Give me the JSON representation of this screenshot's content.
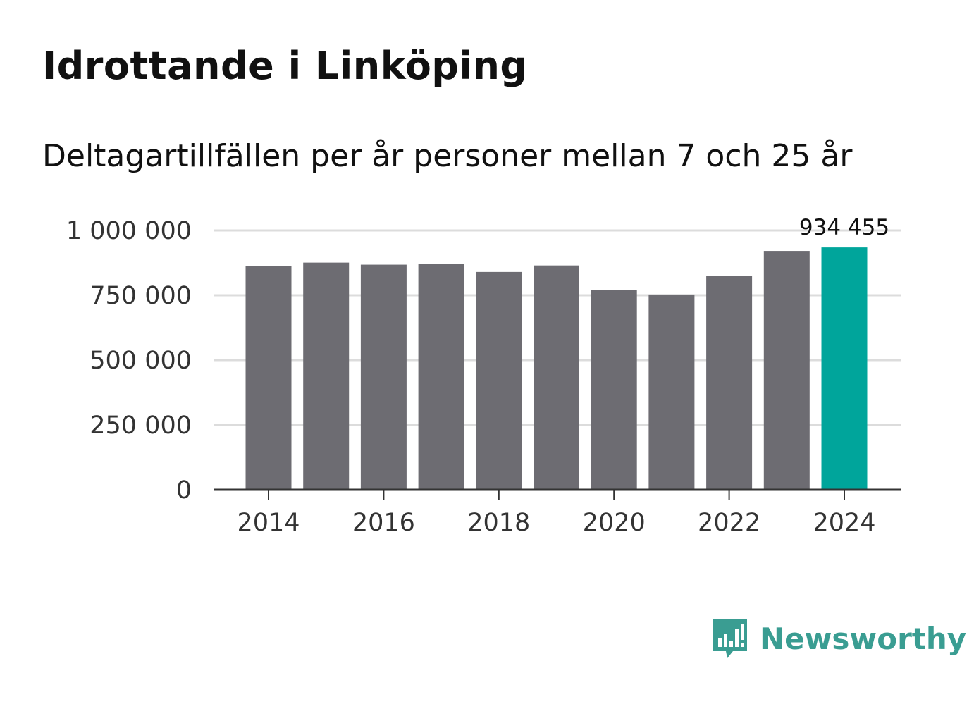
{
  "header": {
    "title": "Idrottande i Linköping",
    "subtitle": "Deltagartillfällen per år personer mellan 7 och 25 år"
  },
  "colors": {
    "bar": "#6d6c72",
    "highlight": "#00a59b",
    "grid": "#dcdcdc",
    "axis": "#333333",
    "logo": "#3a9d92"
  },
  "chart_data": {
    "type": "bar",
    "title": "Idrottande i Linköping",
    "subtitle": "Deltagartillfällen per år personer mellan 7 och 25 år",
    "xlabel": "",
    "ylabel": "",
    "categories": [
      "2014",
      "2015",
      "2016",
      "2017",
      "2018",
      "2019",
      "2020",
      "2021",
      "2022",
      "2023",
      "2024"
    ],
    "values": [
      862000,
      876000,
      868000,
      870000,
      840000,
      865000,
      770000,
      753000,
      826000,
      921000,
      934455
    ],
    "highlight_index": 10,
    "ylim": [
      0,
      1000000
    ],
    "yticks": [
      0,
      250000,
      500000,
      750000,
      1000000
    ],
    "ytick_labels": [
      "0",
      "250 000",
      "500 000",
      "750 000",
      "1 000 000"
    ],
    "xtick_labels": [
      "2014",
      "2016",
      "2018",
      "2020",
      "2022",
      "2024"
    ],
    "data_label": "934 455",
    "grid": true,
    "legend": "none"
  },
  "footer": {
    "brand": "Newsworthy",
    "logo_icon": "newsworthy-logo-icon"
  }
}
